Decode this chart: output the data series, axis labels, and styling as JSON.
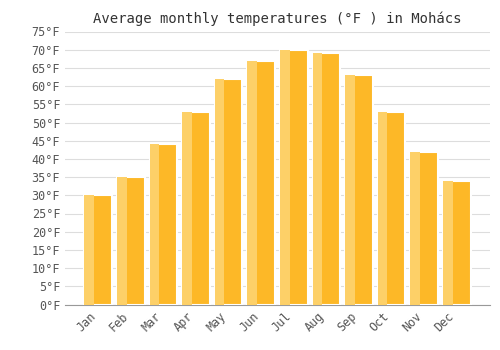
{
  "title": "Average monthly temperatures (°F ) in Mohács",
  "months": [
    "Jan",
    "Feb",
    "Mar",
    "Apr",
    "May",
    "Jun",
    "Jul",
    "Aug",
    "Sep",
    "Oct",
    "Nov",
    "Dec"
  ],
  "values": [
    30,
    35,
    44,
    53,
    62,
    67,
    70,
    69,
    63,
    53,
    42,
    34
  ],
  "bar_color_face": "#FDB827",
  "bar_color_light": "#FDD068",
  "bar_color_edge": "#E8A000",
  "background_color": "#FFFFFF",
  "grid_color": "#DDDDDD",
  "ylim": [
    0,
    75
  ],
  "yticks": [
    0,
    5,
    10,
    15,
    20,
    25,
    30,
    35,
    40,
    45,
    50,
    55,
    60,
    65,
    70,
    75
  ],
  "title_fontsize": 10,
  "tick_fontsize": 8.5,
  "bar_width": 0.85
}
